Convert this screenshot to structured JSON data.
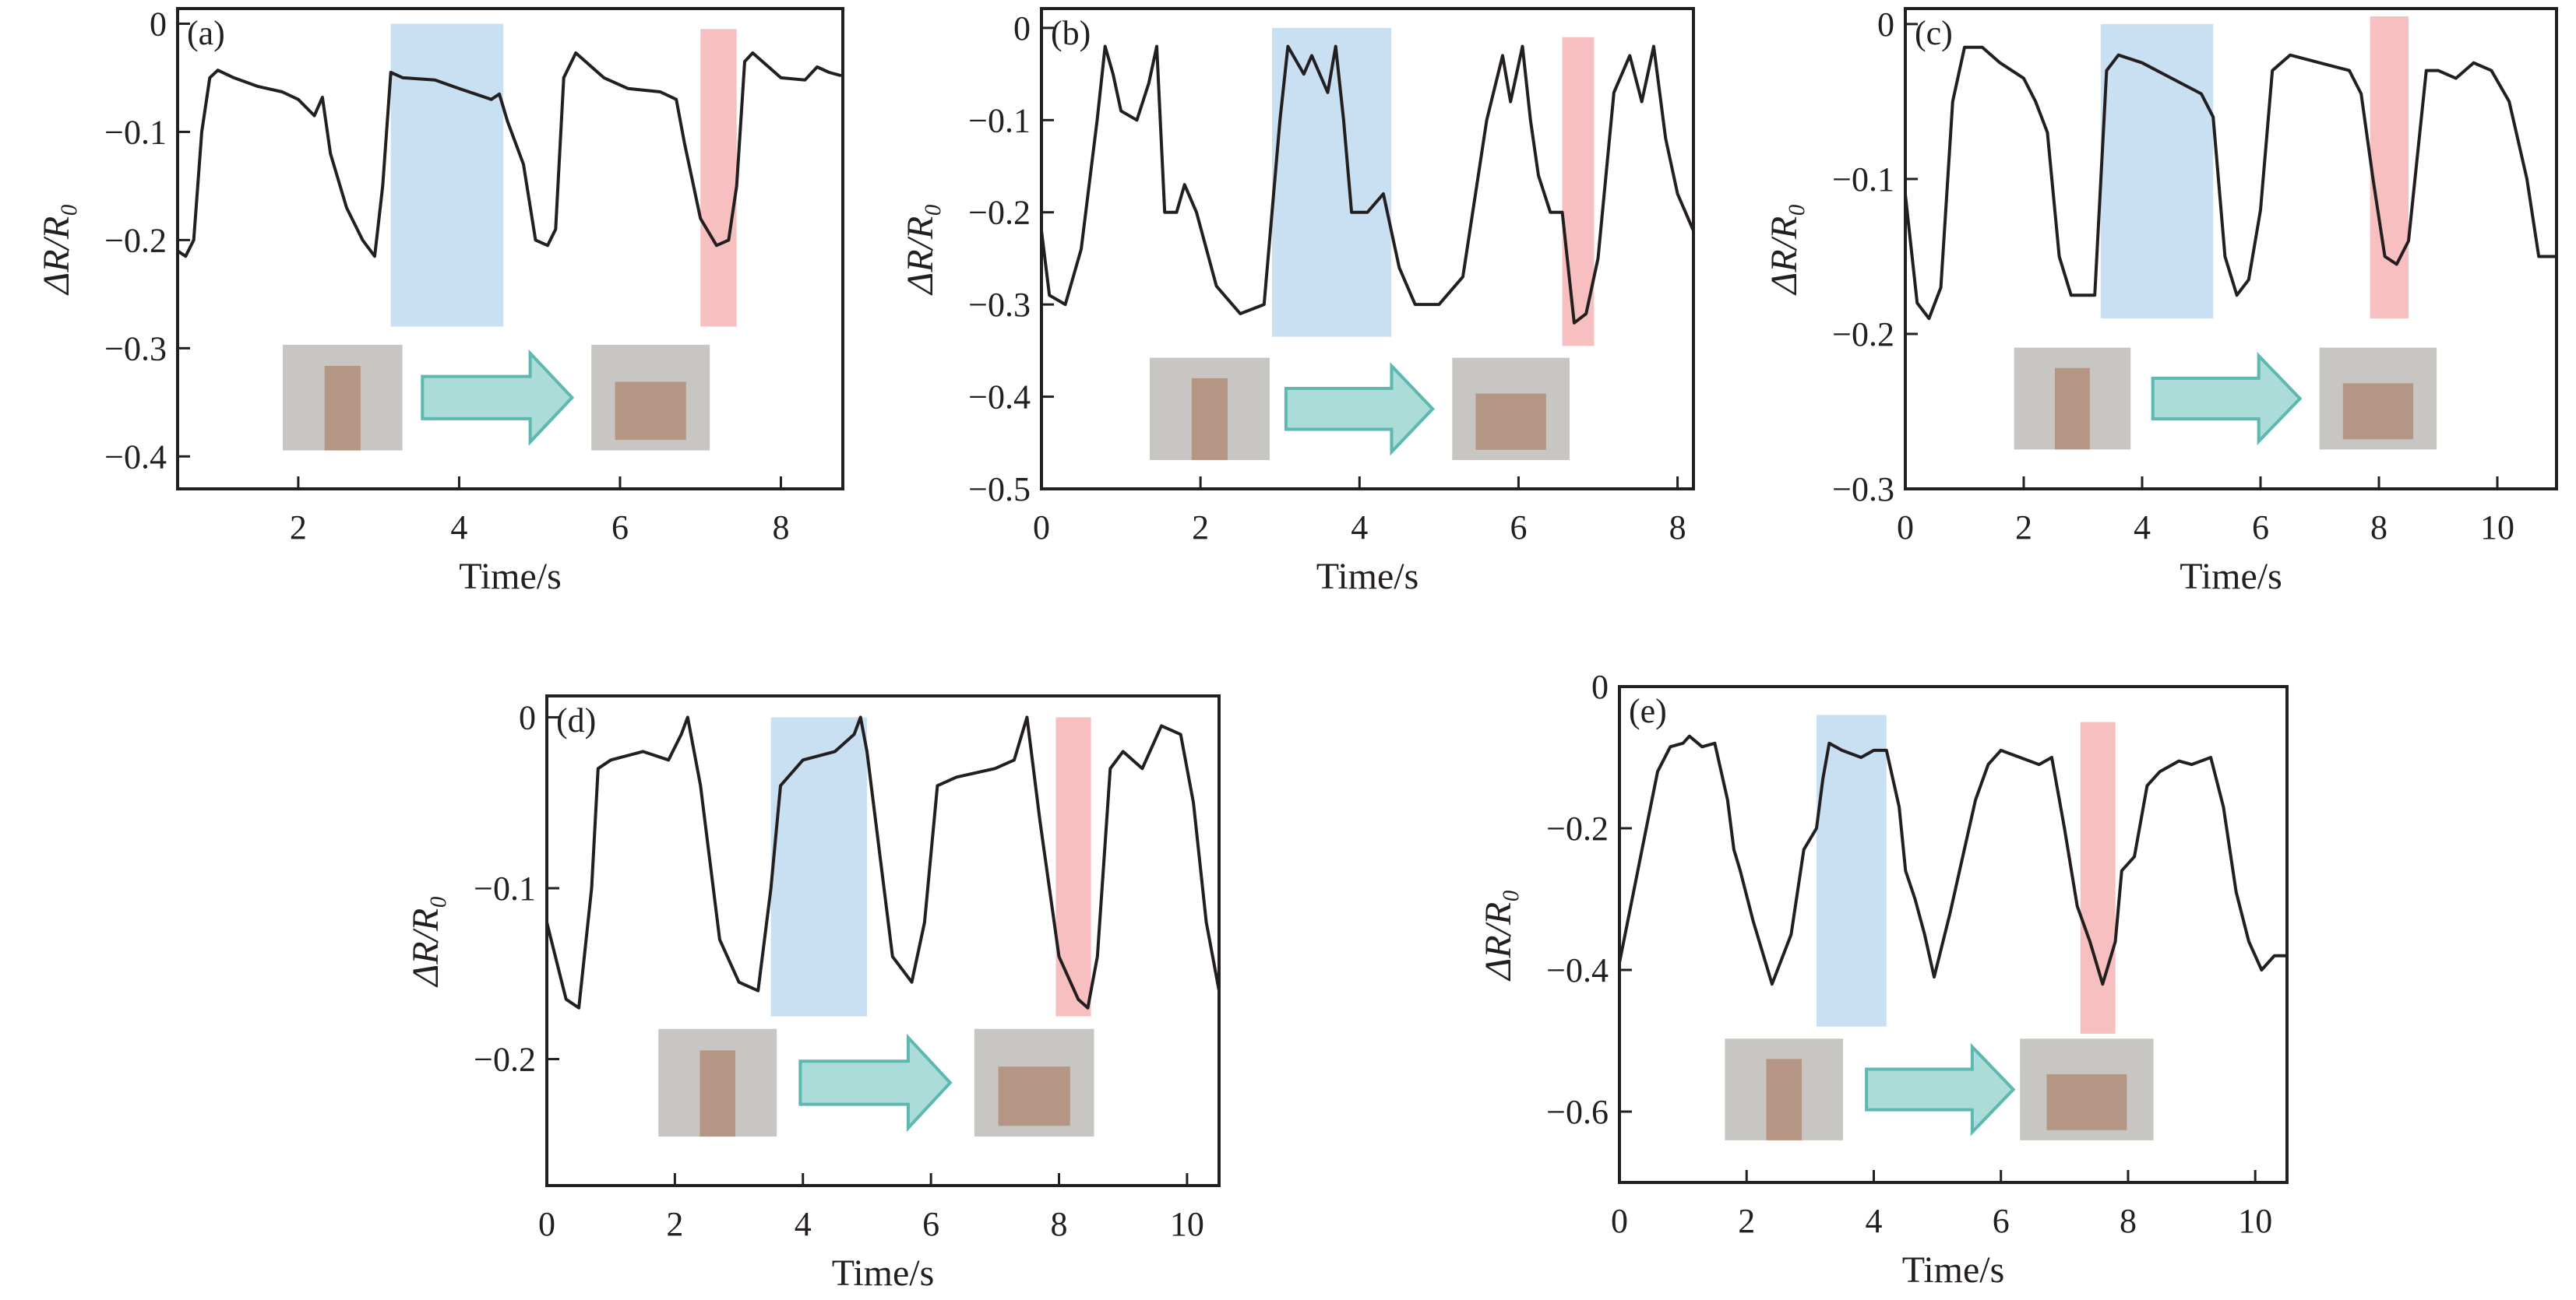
{
  "colors": {
    "line": "#231f20",
    "blue_band": "#c9dff2",
    "red_band": "#f8bfc0",
    "arrow_fill": "#acdcd7",
    "arrow_stroke": "#5cb8b0",
    "photo": "#c8c6c2"
  },
  "chart_data": [
    {
      "type": "line",
      "panel_label": "(a)",
      "xlabel": "Time/s",
      "ylabel": "ΔR/R₀",
      "xlim": [
        0.5,
        8.77
      ],
      "ylim": [
        -0.43,
        0.014
      ],
      "xticks": [
        2,
        4,
        6,
        8
      ],
      "xtick_labels": [
        "2",
        "4",
        "6",
        "8"
      ],
      "yticks": [
        0,
        -0.1,
        -0.2,
        -0.3,
        -0.4
      ],
      "ytick_labels": [
        "0",
        "−0.1",
        "−0.2",
        "−0.3",
        "−0.4"
      ],
      "bands": [
        {
          "color": "blue",
          "x": [
            3.15,
            4.55
          ],
          "y": [
            -0.28,
            0
          ]
        },
        {
          "color": "red",
          "x": [
            7.0,
            7.45
          ],
          "y": [
            -0.28,
            -0.005
          ]
        }
      ],
      "series": [
        {
          "name": "ΔR/R₀",
          "x": [
            0.5,
            0.6,
            0.7,
            0.8,
            0.9,
            1.0,
            1.2,
            1.5,
            1.8,
            2.0,
            2.2,
            2.3,
            2.4,
            2.6,
            2.8,
            2.95,
            3.05,
            3.15,
            3.3,
            3.7,
            4.0,
            4.4,
            4.5,
            4.6,
            4.8,
            4.95,
            5.1,
            5.2,
            5.3,
            5.45,
            5.8,
            6.1,
            6.5,
            6.7,
            6.8,
            7.0,
            7.2,
            7.35,
            7.45,
            7.55,
            7.65,
            8.0,
            8.3,
            8.45,
            8.6,
            8.75
          ],
          "y": [
            -0.21,
            -0.215,
            -0.2,
            -0.1,
            -0.05,
            -0.043,
            -0.05,
            -0.058,
            -0.063,
            -0.07,
            -0.085,
            -0.068,
            -0.12,
            -0.17,
            -0.2,
            -0.215,
            -0.15,
            -0.045,
            -0.05,
            -0.052,
            -0.06,
            -0.07,
            -0.065,
            -0.09,
            -0.13,
            -0.2,
            -0.205,
            -0.19,
            -0.05,
            -0.027,
            -0.05,
            -0.06,
            -0.063,
            -0.07,
            -0.11,
            -0.18,
            -0.205,
            -0.2,
            -0.15,
            -0.035,
            -0.027,
            -0.05,
            -0.052,
            -0.04,
            -0.045,
            -0.048
          ]
        }
      ]
    },
    {
      "type": "line",
      "panel_label": "(b)",
      "xlabel": "Time/s",
      "ylabel": "ΔR/R₀",
      "xlim": [
        0,
        8.2
      ],
      "ylim": [
        -0.5,
        0.021
      ],
      "xticks": [
        0,
        2,
        4,
        6,
        8
      ],
      "xtick_labels": [
        "0",
        "2",
        "4",
        "6",
        "8"
      ],
      "yticks": [
        0,
        -0.1,
        -0.2,
        -0.3,
        -0.4,
        -0.5
      ],
      "ytick_labels": [
        "0",
        "−0.1",
        "−0.2",
        "−0.3",
        "−0.4",
        "−0.5"
      ],
      "bands": [
        {
          "color": "blue",
          "x": [
            2.9,
            4.4
          ],
          "y": [
            -0.335,
            0
          ]
        },
        {
          "color": "red",
          "x": [
            6.55,
            6.95
          ],
          "y": [
            -0.345,
            -0.01
          ]
        }
      ],
      "series": [
        {
          "name": "ΔR/R₀",
          "x": [
            0,
            0.1,
            0.3,
            0.5,
            0.7,
            0.8,
            0.9,
            1.0,
            1.2,
            1.35,
            1.45,
            1.55,
            1.7,
            1.8,
            1.95,
            2.2,
            2.5,
            2.8,
            3.0,
            3.1,
            3.3,
            3.4,
            3.6,
            3.7,
            3.8,
            3.9,
            4.1,
            4.3,
            4.5,
            4.7,
            5.0,
            5.3,
            5.6,
            5.8,
            5.9,
            6.05,
            6.15,
            6.25,
            6.4,
            6.55,
            6.7,
            6.85,
            7.0,
            7.2,
            7.4,
            7.55,
            7.7,
            7.85,
            8.0,
            8.2
          ],
          "y": [
            -0.22,
            -0.29,
            -0.3,
            -0.24,
            -0.1,
            -0.02,
            -0.05,
            -0.09,
            -0.1,
            -0.06,
            -0.02,
            -0.2,
            -0.2,
            -0.17,
            -0.2,
            -0.28,
            -0.31,
            -0.3,
            -0.1,
            -0.02,
            -0.05,
            -0.03,
            -0.07,
            -0.02,
            -0.1,
            -0.2,
            -0.2,
            -0.18,
            -0.26,
            -0.3,
            -0.3,
            -0.27,
            -0.1,
            -0.03,
            -0.08,
            -0.02,
            -0.1,
            -0.16,
            -0.2,
            -0.2,
            -0.32,
            -0.31,
            -0.25,
            -0.07,
            -0.03,
            -0.08,
            -0.02,
            -0.12,
            -0.18,
            -0.22
          ]
        }
      ]
    },
    {
      "type": "line",
      "panel_label": "(c)",
      "xlabel": "Time/s",
      "ylabel": "ΔR/R₀",
      "xlim": [
        0,
        11
      ],
      "ylim": [
        -0.3,
        0.01
      ],
      "xticks": [
        0,
        2,
        4,
        6,
        8,
        10
      ],
      "xtick_labels": [
        "0",
        "2",
        "4",
        "6",
        "8",
        "10"
      ],
      "yticks": [
        0,
        -0.1,
        -0.2,
        -0.3
      ],
      "ytick_labels": [
        "0",
        "−0.1",
        "−0.2",
        "−0.3"
      ],
      "bands": [
        {
          "color": "blue",
          "x": [
            3.3,
            5.2
          ],
          "y": [
            -0.19,
            0
          ]
        },
        {
          "color": "red",
          "x": [
            7.85,
            8.5
          ],
          "y": [
            -0.19,
            0.005
          ]
        }
      ],
      "series": [
        {
          "name": "ΔR/R₀",
          "x": [
            0,
            0.2,
            0.4,
            0.6,
            0.8,
            1.0,
            1.3,
            1.6,
            2.0,
            2.2,
            2.4,
            2.6,
            2.8,
            3.2,
            3.4,
            3.6,
            4.0,
            4.5,
            5.0,
            5.2,
            5.4,
            5.6,
            5.8,
            6.0,
            6.2,
            6.5,
            7.0,
            7.5,
            7.7,
            7.9,
            8.1,
            8.3,
            8.5,
            8.8,
            9.0,
            9.3,
            9.6,
            9.9,
            10.2,
            10.5,
            10.7,
            11
          ],
          "y": [
            -0.11,
            -0.18,
            -0.19,
            -0.17,
            -0.05,
            -0.015,
            -0.015,
            -0.025,
            -0.035,
            -0.05,
            -0.07,
            -0.15,
            -0.175,
            -0.175,
            -0.03,
            -0.02,
            -0.025,
            -0.035,
            -0.045,
            -0.06,
            -0.15,
            -0.175,
            -0.165,
            -0.12,
            -0.03,
            -0.02,
            -0.025,
            -0.03,
            -0.045,
            -0.1,
            -0.15,
            -0.155,
            -0.14,
            -0.03,
            -0.03,
            -0.035,
            -0.025,
            -0.03,
            -0.05,
            -0.1,
            -0.15,
            -0.15
          ]
        }
      ]
    },
    {
      "type": "line",
      "panel_label": "(d)",
      "xlabel": "Time/s",
      "ylabel": "ΔR/R₀",
      "xlim": [
        0,
        10.5
      ],
      "ylim": [
        -0.274,
        0.0125
      ],
      "xticks": [
        0,
        2,
        4,
        6,
        8,
        10
      ],
      "xtick_labels": [
        "0",
        "2",
        "4",
        "6",
        "8",
        "10"
      ],
      "yticks": [
        0,
        -0.1,
        -0.2
      ],
      "ytick_labels": [
        "0",
        "−0.1",
        "−0.2"
      ],
      "bands": [
        {
          "color": "blue",
          "x": [
            3.5,
            5.0
          ],
          "y": [
            -0.175,
            0.0
          ]
        },
        {
          "color": "red",
          "x": [
            7.95,
            8.5
          ],
          "y": [
            -0.175,
            0.0
          ]
        }
      ],
      "series": [
        {
          "name": "ΔR/R₀",
          "x": [
            0,
            0.3,
            0.5,
            0.7,
            0.8,
            1.0,
            1.5,
            1.9,
            2.1,
            2.2,
            2.4,
            2.7,
            3.0,
            3.3,
            3.5,
            3.65,
            4.0,
            4.5,
            4.8,
            4.9,
            5.0,
            5.2,
            5.4,
            5.7,
            5.9,
            6.1,
            6.4,
            7.0,
            7.3,
            7.5,
            7.7,
            8.0,
            8.3,
            8.45,
            8.6,
            8.8,
            9.0,
            9.3,
            9.6,
            9.9,
            10.1,
            10.3,
            10.5
          ],
          "y": [
            -0.12,
            -0.165,
            -0.17,
            -0.1,
            -0.03,
            -0.025,
            -0.02,
            -0.025,
            -0.01,
            0,
            -0.04,
            -0.13,
            -0.155,
            -0.16,
            -0.1,
            -0.04,
            -0.025,
            -0.02,
            -0.01,
            0,
            -0.02,
            -0.08,
            -0.14,
            -0.155,
            -0.12,
            -0.04,
            -0.035,
            -0.03,
            -0.025,
            0,
            -0.06,
            -0.14,
            -0.165,
            -0.17,
            -0.14,
            -0.03,
            -0.02,
            -0.03,
            -0.005,
            -0.01,
            -0.05,
            -0.12,
            -0.16
          ]
        }
      ]
    },
    {
      "type": "line",
      "panel_label": "(e)",
      "xlabel": "Time/s",
      "ylabel": "ΔR/R₀",
      "xlim": [
        0,
        10.5
      ],
      "ylim": [
        -0.7,
        0
      ],
      "xticks": [
        0,
        2,
        4,
        6,
        8,
        10
      ],
      "xtick_labels": [
        "0",
        "2",
        "4",
        "6",
        "8",
        "10"
      ],
      "yticks": [
        0,
        -0.2,
        -0.4,
        -0.6
      ],
      "ytick_labels": [
        "0",
        "−0.2",
        "−0.4",
        "−0.6"
      ],
      "bands": [
        {
          "color": "blue",
          "x": [
            3.1,
            4.2
          ],
          "y": [
            -0.48,
            -0.04
          ]
        },
        {
          "color": "red",
          "x": [
            7.25,
            7.8
          ],
          "y": [
            -0.49,
            -0.05
          ]
        }
      ],
      "series": [
        {
          "name": "ΔR/R₀",
          "x": [
            0,
            0.2,
            0.4,
            0.6,
            0.8,
            1.0,
            1.1,
            1.3,
            1.5,
            1.7,
            1.8,
            1.9,
            2.1,
            2.4,
            2.7,
            2.9,
            3.1,
            3.2,
            3.3,
            3.5,
            3.8,
            4.0,
            4.2,
            4.4,
            4.5,
            4.65,
            4.8,
            4.95,
            5.2,
            5.4,
            5.6,
            5.8,
            6.0,
            6.3,
            6.6,
            6.8,
            7.0,
            7.2,
            7.4,
            7.6,
            7.8,
            7.9,
            8.1,
            8.3,
            8.5,
            8.8,
            9.0,
            9.3,
            9.5,
            9.7,
            9.9,
            10.1,
            10.3,
            10.5
          ],
          "y": [
            -0.39,
            -0.3,
            -0.21,
            -0.12,
            -0.085,
            -0.08,
            -0.07,
            -0.085,
            -0.08,
            -0.16,
            -0.23,
            -0.26,
            -0.33,
            -0.42,
            -0.35,
            -0.23,
            -0.2,
            -0.13,
            -0.08,
            -0.09,
            -0.1,
            -0.09,
            -0.09,
            -0.17,
            -0.26,
            -0.3,
            -0.35,
            -0.41,
            -0.32,
            -0.24,
            -0.16,
            -0.11,
            -0.09,
            -0.1,
            -0.11,
            -0.1,
            -0.2,
            -0.31,
            -0.36,
            -0.42,
            -0.36,
            -0.26,
            -0.24,
            -0.14,
            -0.12,
            -0.105,
            -0.11,
            -0.1,
            -0.17,
            -0.29,
            -0.36,
            -0.4,
            -0.38,
            -0.38
          ]
        }
      ]
    }
  ]
}
